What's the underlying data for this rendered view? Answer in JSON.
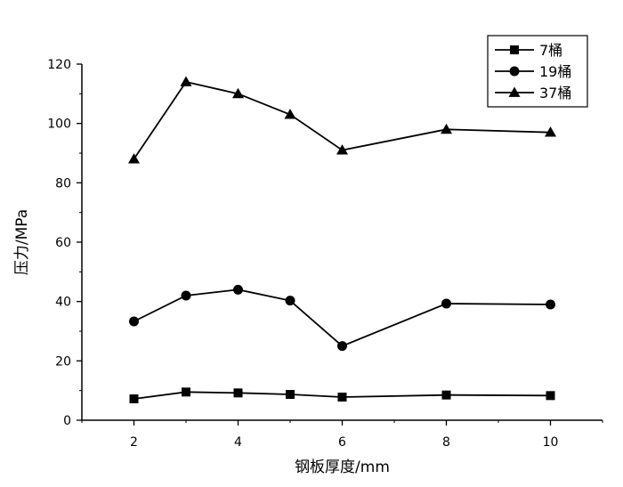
{
  "chart_data": {
    "type": "line",
    "title": "",
    "xlabel": "钢板厚度/mm",
    "ylabel": "压力/MPa",
    "xlim": [
      1,
      11
    ],
    "ylim": [
      0,
      120
    ],
    "x_ticks": [
      2,
      4,
      6,
      8,
      10
    ],
    "y_ticks": [
      0,
      20,
      40,
      60,
      80,
      100,
      120
    ],
    "x": [
      2,
      3,
      4,
      5,
      6,
      8,
      10
    ],
    "grid": false,
    "legend_position": "top-right",
    "series": [
      {
        "name": "7桶",
        "marker": "square",
        "values": [
          7.2,
          9.5,
          9.2,
          8.7,
          7.8,
          8.5,
          8.3
        ]
      },
      {
        "name": "19桶",
        "marker": "circle",
        "values": [
          33.3,
          42,
          44,
          40.3,
          25,
          39.3,
          39
        ]
      },
      {
        "name": "37桶",
        "marker": "triangle",
        "values": [
          88,
          114,
          110,
          103,
          91,
          98,
          97
        ]
      }
    ]
  }
}
